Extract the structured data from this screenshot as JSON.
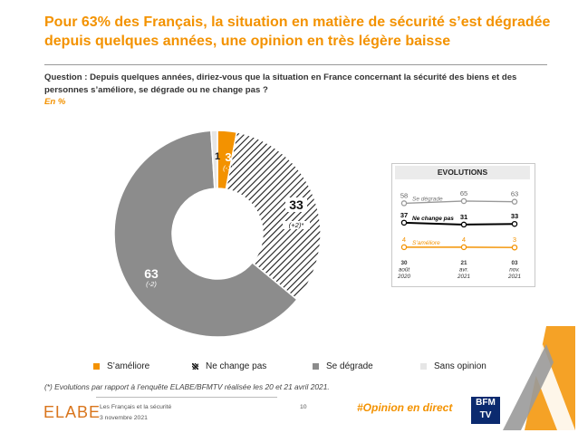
{
  "title": "Pour 63% des Français, la situation en matière de sécurité s’est dégradée depuis quelques années, une opinion en très légère baisse",
  "question": "Question : Depuis quelques années, diriez-vous que la situation en France concernant la sécurité des biens et des personnes s’améliore, se dégrade ou ne change pas ?",
  "unit": "En %",
  "chart_data": [
    {
      "type": "pie",
      "categories": [
        "S’améliore",
        "Ne change pas",
        "Se dégrade",
        "Sans opinion"
      ],
      "values": [
        3,
        33,
        63,
        1
      ],
      "value_labels": [
        "3",
        "33",
        "63",
        "1"
      ],
      "changes": [
        "(-1)",
        "(+2)*",
        "(-2)",
        ""
      ],
      "colors": [
        "#f39200",
        "#hatched",
        "#8c8c8c",
        "#e6e6e6"
      ],
      "legend_placement": "bottom"
    },
    {
      "type": "line",
      "title": "EVOLUTIONS",
      "x": [
        "30 août 2020",
        "21 avr. 2021",
        "03 nov. 2021"
      ],
      "x_lines": [
        [
          "30",
          "août",
          "2020"
        ],
        [
          "21",
          "avr.",
          "2021"
        ],
        [
          "03",
          "nov.",
          "2021"
        ]
      ],
      "series": [
        {
          "name": "Se dégrade",
          "values": [
            58,
            65,
            63
          ],
          "color": "#9a9a9a"
        },
        {
          "name": "Ne change pas",
          "values": [
            37,
            31,
            33
          ],
          "color": "#000000"
        },
        {
          "name": "S’améliore",
          "values": [
            4,
            4,
            3
          ],
          "color": "#f39200"
        }
      ]
    }
  ],
  "legend": [
    "S’améliore",
    "Ne change pas",
    "Se dégrade",
    "Sans opinion"
  ],
  "note": "(*) Evolutions par rapport à l’enquête ELABE/BFMTV réalisée les 20 et 21 avril 2021.",
  "footer": {
    "logo": "ELABE",
    "line1": "Les Français et la sécurité",
    "line2": "3 novembre 2021",
    "page": "10",
    "hashtag": "#Opinion en direct",
    "bfm_logo": "BFM TV"
  }
}
